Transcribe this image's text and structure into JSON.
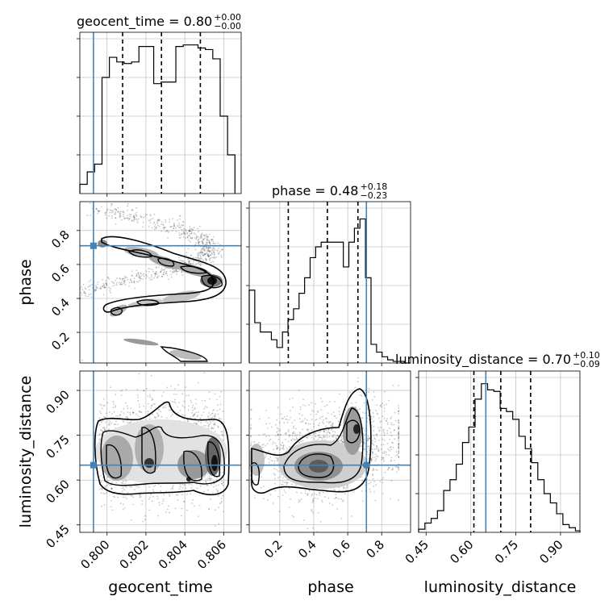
{
  "chart_data": {
    "type": "corner",
    "parameters": [
      "geocent_time",
      "phase",
      "luminosity_distance"
    ],
    "axis_labels": {
      "geocent_time": "geocent_time",
      "phase": "phase",
      "luminosity_distance": "luminosity_distance"
    },
    "titles": [
      {
        "param": "geocent_time",
        "text": "geocent_time = 0.80",
        "plus": "+0.00",
        "minus": "−0.00"
      },
      {
        "param": "phase",
        "text": "phase = 0.48",
        "plus": "+0.18",
        "minus": "−0.23"
      },
      {
        "param": "luminosity_distance",
        "text": "luminosity_distance = 0.70",
        "plus": "+0.10",
        "minus": "−0.09"
      }
    ],
    "ranges": {
      "geocent_time": [
        0.7986,
        0.8069
      ],
      "phase": [
        0.02,
        0.97
      ],
      "luminosity_distance": [
        0.425,
        0.965
      ]
    },
    "ticks": {
      "geocent_time": [
        0.8,
        0.802,
        0.804,
        0.806
      ],
      "phase": [
        0.2,
        0.4,
        0.6,
        0.8
      ],
      "luminosity_distance": [
        0.45,
        0.6,
        0.75,
        0.9
      ]
    },
    "tick_labels": {
      "geocent_time": [
        "0.800",
        "0.802",
        "0.804",
        "0.806"
      ],
      "phase": [
        "0.2",
        "0.4",
        "0.6",
        "0.8"
      ],
      "luminosity_distance": [
        "0.45",
        "0.60",
        "0.75",
        "0.90"
      ]
    },
    "truths": {
      "geocent_time": 0.7993,
      "phase": 0.71,
      "luminosity_distance": 0.65
    },
    "quantiles": {
      "geocent_time": [
        0.8008,
        0.8028,
        0.8048
      ],
      "phase": [
        0.25,
        0.48,
        0.66
      ],
      "luminosity_distance": [
        0.61,
        0.7,
        0.8
      ]
    },
    "histograms": {
      "geocent_time": {
        "edges": [
          0.7986,
          0.79898,
          0.79936,
          0.79974,
          0.80012,
          0.8005,
          0.80088,
          0.80126,
          0.80164,
          0.80202,
          0.8024,
          0.80278,
          0.80316,
          0.80354,
          0.80392,
          0.8043,
          0.80468,
          0.80506,
          0.80544,
          0.80582,
          0.8062,
          0.80658
        ],
        "counts": [
          0.06,
          0.14,
          0.19,
          0.75,
          0.88,
          0.85,
          0.84,
          0.85,
          0.95,
          0.95,
          0.71,
          0.72,
          0.72,
          0.95,
          0.96,
          0.96,
          0.94,
          0.93,
          0.87,
          0.5,
          0.25
        ]
      },
      "phase": {
        "edges": [
          0.02,
          0.0526,
          0.0852,
          0.1178,
          0.1504,
          0.183,
          0.2156,
          0.2482,
          0.2808,
          0.3134,
          0.346,
          0.3786,
          0.4112,
          0.4438,
          0.4764,
          0.509,
          0.5416,
          0.5742,
          0.6068,
          0.6394,
          0.672,
          0.7046,
          0.7372,
          0.7698,
          0.8024,
          0.835,
          0.8676,
          0.9002,
          0.9328,
          0.97
        ],
        "counts": [
          0.47,
          0.26,
          0.2,
          0.2,
          0.15,
          0.1,
          0.2,
          0.28,
          0.35,
          0.45,
          0.55,
          0.68,
          0.75,
          0.78,
          0.78,
          0.78,
          0.78,
          0.62,
          0.78,
          0.87,
          0.93,
          0.55,
          0.12,
          0.07,
          0.04,
          0.02,
          0.01,
          0.01,
          0.0
        ]
      },
      "luminosity_distance": {
        "edges": [
          0.425,
          0.446,
          0.467,
          0.488,
          0.509,
          0.53,
          0.551,
          0.572,
          0.593,
          0.614,
          0.635,
          0.656,
          0.677,
          0.698,
          0.719,
          0.74,
          0.761,
          0.782,
          0.803,
          0.824,
          0.845,
          0.866,
          0.887,
          0.908,
          0.929,
          0.95,
          0.965
        ],
        "counts": [
          0.02,
          0.06,
          0.09,
          0.14,
          0.27,
          0.34,
          0.44,
          0.58,
          0.68,
          0.86,
          0.96,
          0.92,
          0.91,
          0.8,
          0.78,
          0.73,
          0.62,
          0.54,
          0.45,
          0.34,
          0.25,
          0.19,
          0.12,
          0.05,
          0.03,
          0.01
        ]
      }
    },
    "colors": {
      "truth": "#4682b4",
      "hist": "#000000",
      "contour": "#000000",
      "grid": "#b0b0b0"
    },
    "grid": true
  }
}
